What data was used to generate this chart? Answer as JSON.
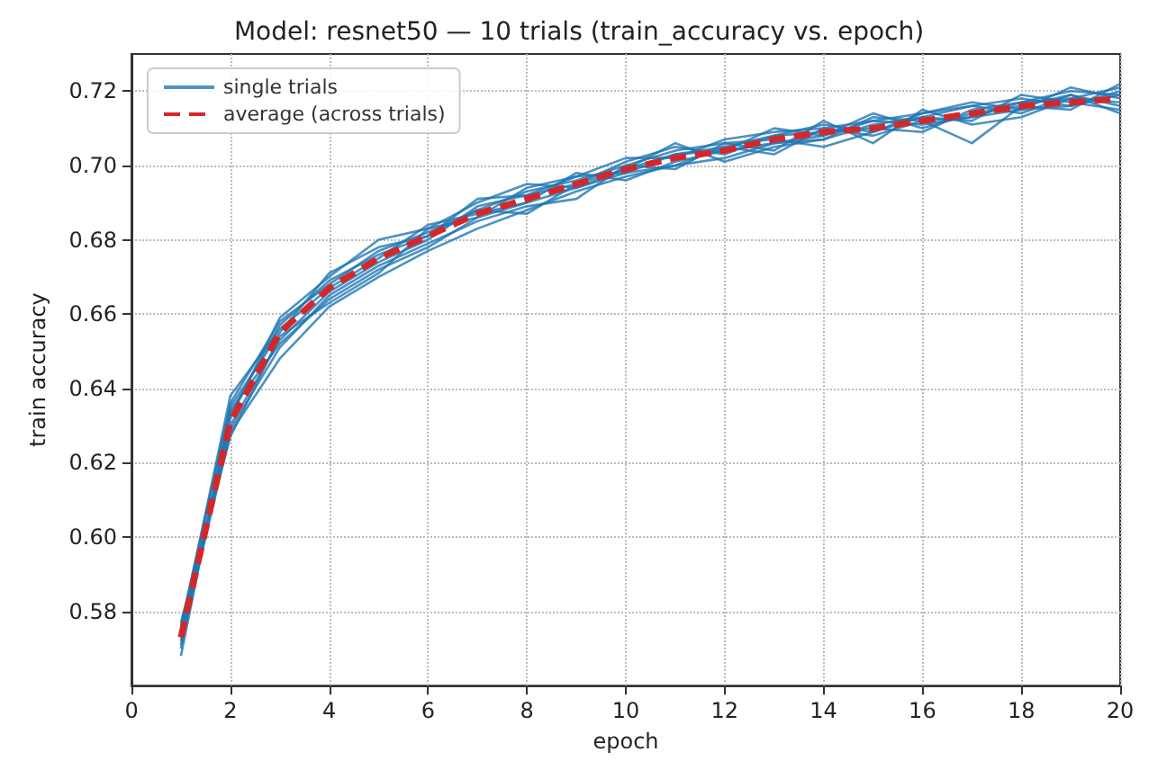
{
  "chart_data": {
    "type": "line",
    "title": "Model: resnet50 — 10 trials (train_accuracy vs. epoch)",
    "xlabel": "epoch",
    "ylabel": "train accuracy",
    "x": [
      1,
      2,
      3,
      4,
      5,
      6,
      7,
      8,
      9,
      10,
      11,
      12,
      13,
      14,
      15,
      16,
      17,
      18,
      19,
      20
    ],
    "xlim": [
      0,
      20
    ],
    "xticks": [
      0,
      2,
      4,
      6,
      8,
      10,
      12,
      14,
      16,
      18,
      20
    ],
    "ylim": [
      0.56,
      0.73
    ],
    "yticks": [
      {
        "value": 0.58,
        "label": "0.58"
      },
      {
        "value": 0.6,
        "label": "0.60"
      },
      {
        "value": 0.62,
        "label": "0.62"
      },
      {
        "value": 0.64,
        "label": "0.64"
      },
      {
        "value": 0.66,
        "label": "0.66"
      },
      {
        "value": 0.68,
        "label": "0.68"
      },
      {
        "value": 0.7,
        "label": "0.70"
      },
      {
        "value": 0.72,
        "label": "0.72"
      }
    ],
    "grid": true,
    "legend": "top left",
    "marker": "none",
    "series": [
      {
        "name": "single trials",
        "color": "#1f77b4",
        "line_style": "solid",
        "values": [
          0.568,
          0.634,
          0.652,
          0.664,
          0.672,
          0.678,
          0.686,
          0.69,
          0.694,
          0.698,
          0.703,
          0.705,
          0.708,
          0.711,
          0.709,
          0.713,
          0.716,
          0.714,
          0.719,
          0.716
        ]
      },
      {
        "color": "#1f77b4",
        "line_style": "solid",
        "values": [
          0.572,
          0.628,
          0.648,
          0.662,
          0.67,
          0.677,
          0.683,
          0.688,
          0.693,
          0.697,
          0.7,
          0.702,
          0.706,
          0.708,
          0.712,
          0.711,
          0.713,
          0.717,
          0.718,
          0.721
        ]
      },
      {
        "color": "#1f77b4",
        "line_style": "solid",
        "values": [
          0.576,
          0.636,
          0.658,
          0.668,
          0.677,
          0.682,
          0.688,
          0.693,
          0.696,
          0.7,
          0.704,
          0.706,
          0.707,
          0.705,
          0.709,
          0.714,
          0.716,
          0.718,
          0.716,
          0.719
        ]
      },
      {
        "color": "#1f77b4",
        "line_style": "solid",
        "values": [
          0.574,
          0.63,
          0.653,
          0.666,
          0.674,
          0.68,
          0.689,
          0.692,
          0.697,
          0.702,
          0.702,
          0.707,
          0.709,
          0.71,
          0.708,
          0.712,
          0.713,
          0.715,
          0.721,
          0.718
        ]
      },
      {
        "color": "#1f77b4",
        "line_style": "solid",
        "values": [
          0.571,
          0.632,
          0.659,
          0.67,
          0.68,
          0.683,
          0.69,
          0.695,
          0.694,
          0.699,
          0.706,
          0.701,
          0.705,
          0.707,
          0.711,
          0.713,
          0.712,
          0.719,
          0.717,
          0.715
        ]
      },
      {
        "color": "#1f77b4",
        "line_style": "solid",
        "values": [
          0.575,
          0.638,
          0.656,
          0.667,
          0.675,
          0.684,
          0.687,
          0.69,
          0.698,
          0.696,
          0.701,
          0.704,
          0.71,
          0.708,
          0.714,
          0.71,
          0.714,
          0.716,
          0.715,
          0.722
        ]
      },
      {
        "color": "#1f77b4",
        "line_style": "solid",
        "values": [
          0.573,
          0.629,
          0.651,
          0.665,
          0.673,
          0.679,
          0.685,
          0.689,
          0.691,
          0.7,
          0.699,
          0.706,
          0.704,
          0.712,
          0.706,
          0.715,
          0.711,
          0.713,
          0.718,
          0.717
        ]
      },
      {
        "color": "#1f77b4",
        "line_style": "solid",
        "values": [
          0.57,
          0.633,
          0.657,
          0.669,
          0.676,
          0.681,
          0.691,
          0.692,
          0.695,
          0.701,
          0.705,
          0.703,
          0.708,
          0.709,
          0.71,
          0.709,
          0.715,
          0.717,
          0.72,
          0.719
        ]
      },
      {
        "color": "#1f77b4",
        "line_style": "solid",
        "values": [
          0.577,
          0.627,
          0.654,
          0.663,
          0.671,
          0.683,
          0.686,
          0.694,
          0.697,
          0.698,
          0.7,
          0.705,
          0.703,
          0.71,
          0.712,
          0.714,
          0.717,
          0.715,
          0.716,
          0.72
        ]
      },
      {
        "color": "#1f77b4",
        "line_style": "solid",
        "values": [
          0.574,
          0.635,
          0.655,
          0.671,
          0.678,
          0.681,
          0.688,
          0.687,
          0.695,
          0.699,
          0.703,
          0.704,
          0.706,
          0.707,
          0.713,
          0.712,
          0.706,
          0.716,
          0.719,
          0.714
        ]
      },
      {
        "name": "average (across trials)",
        "color": "#d62728",
        "line_style": "dashed",
        "values": [
          0.573,
          0.631,
          0.655,
          0.667,
          0.675,
          0.681,
          0.687,
          0.691,
          0.695,
          0.699,
          0.702,
          0.704,
          0.707,
          0.709,
          0.71,
          0.712,
          0.714,
          0.716,
          0.717,
          0.718
        ]
      }
    ]
  }
}
